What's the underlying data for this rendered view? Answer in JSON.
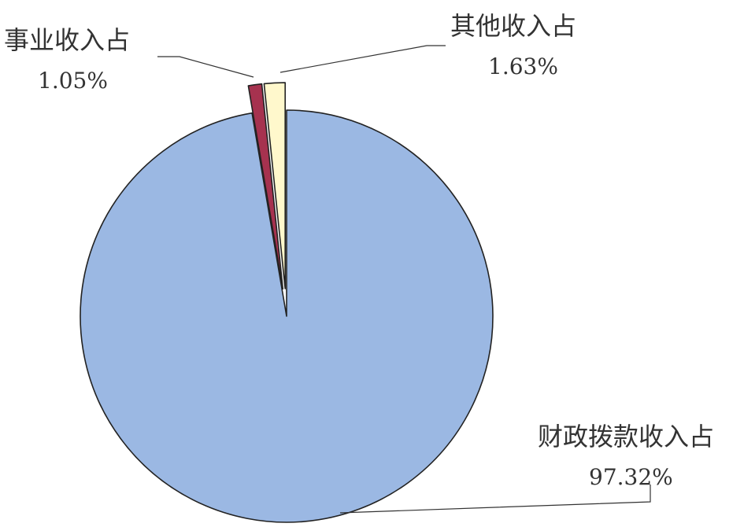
{
  "chart_data": {
    "type": "pie",
    "categories": [
      "财政拨款收入占",
      "事业收入占",
      "其他收入占"
    ],
    "values": [
      97.32,
      1.05,
      1.63
    ],
    "value_labels": [
      "97.32%",
      "1.05%",
      "1.63%"
    ],
    "colors": [
      "#9bb8e3",
      "#a6324f",
      "#fff8cc"
    ],
    "exploded": [
      false,
      true,
      true
    ],
    "legend": "none"
  }
}
